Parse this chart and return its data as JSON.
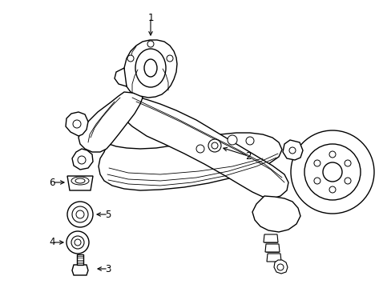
{
  "background_color": "#ffffff",
  "figure_size": [
    4.89,
    3.6
  ],
  "dpi": 100,
  "ec": "#000000",
  "lw": 1.0,
  "lw_thin": 0.6,
  "part_label_fontsize": 8.5,
  "part_label_color": "#000000",
  "arrow_color": "#000000",
  "arrow_linewidth": 0.8
}
